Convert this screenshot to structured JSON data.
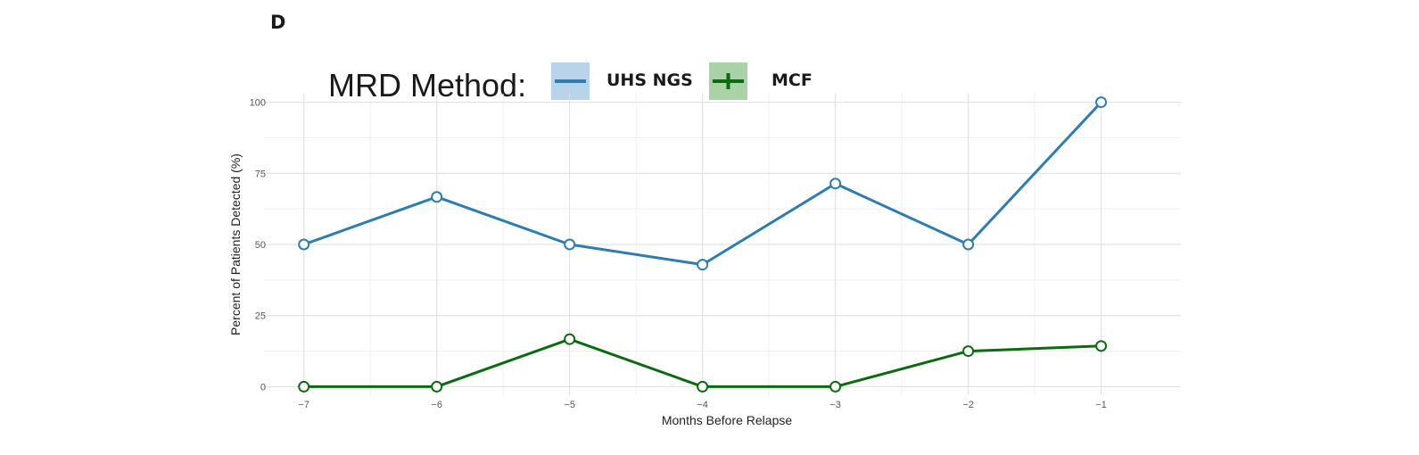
{
  "panel_label": "D",
  "legend": {
    "title": "MRD Method:",
    "entries": [
      {
        "label": "UHS NGS",
        "color": "#2e7db1",
        "key_bg": "#b9d4ea",
        "glyph": "line"
      },
      {
        "label": "MCF",
        "color": "#0b6b10",
        "key_bg": "#a9d3a7",
        "glyph": "cross"
      }
    ]
  },
  "chart_data": {
    "type": "line",
    "x": [
      -7,
      -6,
      -5,
      -4,
      -3,
      -2,
      -1
    ],
    "x_tick_labels": [
      "−7",
      "−6",
      "−5",
      "−4",
      "−3",
      "−2",
      "−1"
    ],
    "y_ticks": [
      0,
      25,
      50,
      75,
      100
    ],
    "y_tick_labels": [
      "0",
      "25",
      "50",
      "75",
      "100"
    ],
    "xlabel": "Months Before Relapse",
    "ylabel": "Percent of Patients Detected (%)",
    "xlim": [
      -7.3,
      -0.4
    ],
    "ylim": [
      -3,
      103
    ],
    "grid": true,
    "legend_position": "top",
    "series": [
      {
        "name": "UHS NGS",
        "color": "#2e7db1",
        "values": [
          50,
          66.7,
          50,
          42.9,
          71.4,
          50,
          100
        ]
      },
      {
        "name": "MCF",
        "color": "#0b6b10",
        "values": [
          0,
          0,
          16.7,
          0,
          0,
          12.5,
          14.3
        ]
      }
    ]
  }
}
